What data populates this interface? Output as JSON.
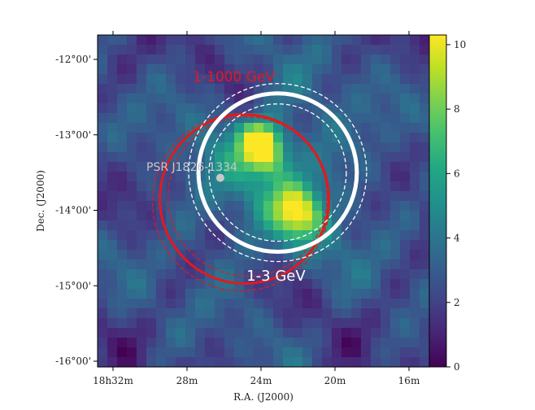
{
  "chart_data": {
    "type": "heatmap",
    "title": "",
    "xlabel": "R.A. (J2000)",
    "ylabel": "Dec. (J2000)",
    "x_ticks": [
      {
        "label": "18h32m",
        "ra_min": 32
      },
      {
        "label": "28m",
        "ra_min": 28
      },
      {
        "label": "24m",
        "ra_min": 24
      },
      {
        "label": "20m",
        "ra_min": 20
      },
      {
        "label": "16m",
        "ra_min": 16
      }
    ],
    "y_ticks": [
      {
        "label": "-12°00'",
        "dec_deg": -12
      },
      {
        "label": "-13°00'",
        "dec_deg": -13
      },
      {
        "label": "-14°00'",
        "dec_deg": -14
      },
      {
        "label": "-15°00'",
        "dec_deg": -15
      },
      {
        "label": "-16°00'",
        "dec_deg": -16
      }
    ],
    "colorbar": {
      "colormap": "viridis",
      "range": [
        0,
        10.3
      ],
      "ticks": [
        0,
        2,
        4,
        6,
        8,
        10
      ]
    },
    "hotspots": [
      {
        "ra_min": 24.1,
        "dec_deg": -13.08,
        "value": 10.2
      },
      {
        "ra_min": 23.7,
        "dec_deg": -13.25,
        "value": 8.8
      },
      {
        "ra_min": 22.2,
        "dec_deg": -13.95,
        "value": 8.0
      },
      {
        "ra_min": 21.7,
        "dec_deg": -14.15,
        "value": 7.0
      }
    ],
    "pulsar": {
      "label": "PSR J1826-1334",
      "ra_min": 26.2,
      "dec_deg": -13.57
    },
    "regions": [
      {
        "label": "1-1000 GeV",
        "color": "#e31a1c",
        "ra_min": 24.9,
        "dec_deg": -13.85,
        "radius_deg": 1.12
      },
      {
        "label": "1-3 GeV",
        "color": "#ffffff",
        "ra_min": 23.1,
        "dec_deg": -13.5,
        "radius_deg": 1.05
      }
    ]
  }
}
